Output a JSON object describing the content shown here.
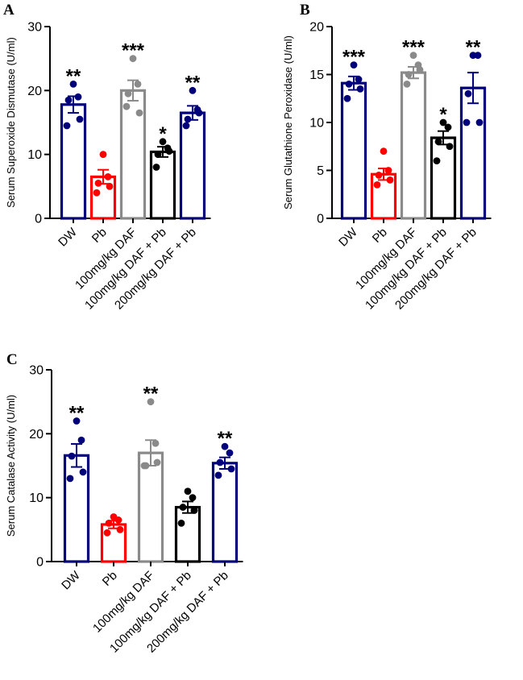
{
  "chart_data": [
    {
      "type": "bar",
      "panel": "A",
      "ylabel": "Serum Superoxide Dismutase (U/ml)",
      "xlabel": "",
      "ylim": [
        0,
        30
      ],
      "yticks": [
        0,
        10,
        20,
        30
      ],
      "categories": [
        "DW",
        "Pb",
        "100mg/kg DAF",
        "100mg/kg DAF + Pb",
        "200mg/kg DAF + Pb"
      ],
      "values": [
        17.8,
        6.5,
        20.0,
        10.4,
        16.5
      ],
      "errors": [
        1.3,
        1.1,
        1.6,
        0.8,
        1.1
      ],
      "points": [
        [
          21.0,
          19.0,
          18.5,
          15.5,
          14.5
        ],
        [
          10.0,
          6.5,
          5.5,
          5.0,
          4.0
        ],
        [
          25.0,
          21.0,
          19.5,
          16.5,
          17.5
        ],
        [
          12.0,
          11.0,
          10.0,
          10.5,
          8.0
        ],
        [
          20.0,
          17.0,
          15.5,
          16.5,
          14.5
        ]
      ],
      "significance": [
        "**",
        "",
        "***",
        "*",
        "**"
      ],
      "colors": [
        "#00007a",
        "#ff0000",
        "#8a8a8a",
        "#000000",
        "#00007a"
      ]
    },
    {
      "type": "bar",
      "panel": "B",
      "ylabel": "Serum Glutathione Peroxidase (U/ml)",
      "xlabel": "",
      "ylim": [
        0,
        20
      ],
      "yticks": [
        0,
        5,
        10,
        15,
        20
      ],
      "categories": [
        "DW",
        "Pb",
        "100mg/kg DAF",
        "100mg/kg DAF + Pb",
        "200mg/kg DAF + Pb"
      ],
      "values": [
        14.1,
        4.6,
        15.2,
        8.4,
        13.6
      ],
      "errors": [
        0.7,
        0.6,
        0.6,
        0.7,
        1.6
      ],
      "points": [
        [
          16.0,
          14.5,
          14.0,
          13.5,
          12.5
        ],
        [
          7.0,
          5.0,
          4.5,
          4.0,
          3.5
        ],
        [
          17.0,
          16.0,
          15.0,
          15.5,
          14.0
        ],
        [
          10.0,
          9.5,
          8.0,
          7.5,
          6.0
        ],
        [
          17.0,
          17.0,
          13.0,
          10.0,
          10.0
        ]
      ],
      "significance": [
        "***",
        "",
        "***",
        "*",
        "**"
      ],
      "colors": [
        "#00007a",
        "#ff0000",
        "#8a8a8a",
        "#000000",
        "#00007a"
      ]
    },
    {
      "type": "bar",
      "panel": "C",
      "ylabel": "Serum Catalase Activity (U/ml)",
      "xlabel": "",
      "ylim": [
        0,
        30
      ],
      "yticks": [
        0,
        10,
        20,
        30
      ],
      "categories": [
        "DW",
        "Pb",
        "100mg/kg DAF",
        "100mg/kg DAF + Pb",
        "200mg/kg DAF + Pb"
      ],
      "values": [
        16.6,
        5.8,
        17.0,
        8.5,
        15.4
      ],
      "errors": [
        1.8,
        0.6,
        2.0,
        0.9,
        0.9
      ],
      "points": [
        [
          22.0,
          19.0,
          16.5,
          14.0,
          13.0
        ],
        [
          7.0,
          6.5,
          6.0,
          5.0,
          4.5
        ],
        [
          25.0,
          18.5,
          15.0,
          15.5,
          15.0
        ],
        [
          11.0,
          10.0,
          8.5,
          8.0,
          6.0
        ],
        [
          18.0,
          17.0,
          15.5,
          14.5,
          13.5
        ]
      ],
      "significance": [
        "**",
        "",
        "**",
        "",
        "**"
      ],
      "colors": [
        "#00007a",
        "#ff0000",
        "#8a8a8a",
        "#000000",
        "#00007a"
      ]
    }
  ]
}
